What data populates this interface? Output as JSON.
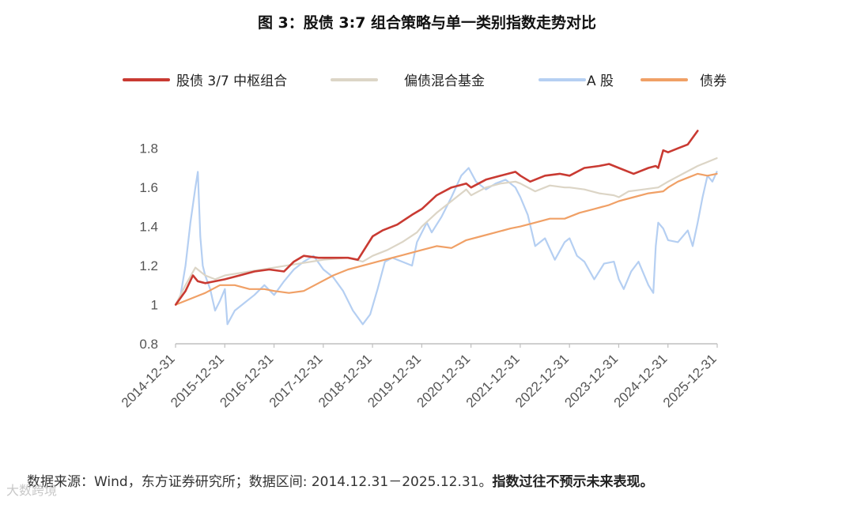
{
  "title": "图 3：股债 3:7 组合策略与单一类别指数走势对比",
  "source": {
    "text": "数据来源：Wind，东方证券研究所；数据区间: 2014.12.31－2025.12.31。",
    "emphasis": "指数过往不预示未来表现。"
  },
  "watermark": "大数跨境",
  "chart_data": {
    "type": "line",
    "title": "图 3：股债 3:7 组合策略与单一类别指数走势对比",
    "xlabel": "",
    "ylabel": "",
    "ylim": [
      0.8,
      1.9
    ],
    "yticks": [
      0.8,
      1,
      1.2,
      1.4,
      1.6,
      1.8
    ],
    "ytick_labels": [
      "0.8",
      "1",
      "1.2",
      "1.4",
      "1.6",
      "1.8"
    ],
    "xlim": [
      2014.9973,
      2025.9973
    ],
    "xticks": [
      2014.9973,
      2015.9973,
      2016.9973,
      2017.9973,
      2018.9973,
      2019.9973,
      2020.9973,
      2021.9973,
      2022.9973,
      2023.9973,
      2024.9973,
      2025.9973
    ],
    "xtick_labels": [
      "2014-12-31",
      "2015-12-31",
      "2016-12-31",
      "2017-12-31",
      "2018-12-31",
      "2019-12-31",
      "2020-12-31",
      "2021-12-31",
      "2022-12-31",
      "2023-12-31",
      "2024-12-31",
      "2025-12-31"
    ],
    "legend_position": "top",
    "grid": false,
    "series": [
      {
        "name": "股债 3/7 中枢组合",
        "color": "#c93a32",
        "x": [
          2015.0,
          2015.2,
          2015.35,
          2015.45,
          2015.6,
          2015.8,
          2016.0,
          2016.3,
          2016.6,
          2016.9,
          2017.2,
          2017.4,
          2017.6,
          2017.9,
          2018.2,
          2018.5,
          2018.7,
          2018.8,
          2019.0,
          2019.2,
          2019.5,
          2019.8,
          2020.0,
          2020.3,
          2020.6,
          2020.9,
          2021.0,
          2021.3,
          2021.6,
          2021.9,
          2022.0,
          2022.2,
          2022.5,
          2022.8,
          2023.0,
          2023.3,
          2023.6,
          2023.8,
          2024.0,
          2024.3,
          2024.6,
          2024.75,
          2024.8,
          2024.9,
          2025.0,
          2025.2,
          2025.4,
          2025.6
        ],
        "y": [
          1.0,
          1.07,
          1.15,
          1.12,
          1.11,
          1.12,
          1.13,
          1.15,
          1.17,
          1.18,
          1.17,
          1.22,
          1.25,
          1.24,
          1.24,
          1.24,
          1.23,
          1.27,
          1.35,
          1.38,
          1.41,
          1.46,
          1.49,
          1.56,
          1.6,
          1.62,
          1.6,
          1.64,
          1.66,
          1.68,
          1.66,
          1.63,
          1.66,
          1.67,
          1.66,
          1.7,
          1.71,
          1.72,
          1.7,
          1.67,
          1.7,
          1.71,
          1.7,
          1.79,
          1.78,
          1.8,
          1.82,
          1.89
        ]
      },
      {
        "name": "偏债混合基金",
        "color": "#dcd5c6",
        "x": [
          2015.0,
          2015.2,
          2015.4,
          2015.6,
          2015.8,
          2016.0,
          2016.5,
          2017.0,
          2017.5,
          2018.0,
          2018.5,
          2018.8,
          2019.0,
          2019.3,
          2019.6,
          2019.9,
          2020.0,
          2020.3,
          2020.6,
          2020.9,
          2021.0,
          2021.3,
          2021.6,
          2021.9,
          2022.0,
          2022.3,
          2022.6,
          2022.9,
          2023.0,
          2023.3,
          2023.6,
          2023.9,
          2024.0,
          2024.2,
          2024.5,
          2024.8,
          2025.0,
          2025.3,
          2025.6,
          2025.99
        ],
        "y": [
          1.0,
          1.1,
          1.19,
          1.15,
          1.13,
          1.15,
          1.17,
          1.19,
          1.21,
          1.23,
          1.24,
          1.22,
          1.25,
          1.28,
          1.32,
          1.37,
          1.4,
          1.47,
          1.53,
          1.59,
          1.56,
          1.6,
          1.62,
          1.63,
          1.62,
          1.58,
          1.61,
          1.6,
          1.6,
          1.59,
          1.57,
          1.56,
          1.55,
          1.58,
          1.59,
          1.6,
          1.63,
          1.67,
          1.71,
          1.75
        ]
      },
      {
        "name": "A 股",
        "color": "#b5cff2",
        "x": [
          2015.0,
          2015.1,
          2015.2,
          2015.3,
          2015.4,
          2015.45,
          2015.5,
          2015.55,
          2015.6,
          2015.7,
          2015.8,
          2015.9,
          2016.0,
          2016.05,
          2016.2,
          2016.4,
          2016.6,
          2016.8,
          2017.0,
          2017.2,
          2017.4,
          2017.6,
          2017.8,
          2018.0,
          2018.2,
          2018.4,
          2018.6,
          2018.8,
          2018.95,
          2019.1,
          2019.25,
          2019.4,
          2019.6,
          2019.8,
          2019.9,
          2020.1,
          2020.2,
          2020.4,
          2020.6,
          2020.8,
          2020.95,
          2021.1,
          2021.3,
          2021.5,
          2021.7,
          2021.9,
          2022.0,
          2022.15,
          2022.3,
          2022.5,
          2022.7,
          2022.9,
          2023.0,
          2023.15,
          2023.3,
          2023.5,
          2023.7,
          2023.9,
          2024.0,
          2024.1,
          2024.25,
          2024.4,
          2024.6,
          2024.7,
          2024.75,
          2024.8,
          2024.9,
          2025.0,
          2025.2,
          2025.4,
          2025.5,
          2025.6,
          2025.7,
          2025.8,
          2025.9,
          2025.99
        ],
        "y": [
          1.0,
          1.05,
          1.2,
          1.42,
          1.6,
          1.68,
          1.35,
          1.2,
          1.15,
          1.08,
          0.97,
          1.02,
          1.08,
          0.9,
          0.97,
          1.01,
          1.05,
          1.1,
          1.05,
          1.12,
          1.18,
          1.22,
          1.25,
          1.18,
          1.14,
          1.07,
          0.97,
          0.9,
          0.95,
          1.08,
          1.22,
          1.24,
          1.22,
          1.2,
          1.32,
          1.42,
          1.37,
          1.45,
          1.55,
          1.66,
          1.7,
          1.63,
          1.59,
          1.62,
          1.64,
          1.6,
          1.55,
          1.46,
          1.3,
          1.34,
          1.23,
          1.32,
          1.34,
          1.25,
          1.22,
          1.13,
          1.21,
          1.22,
          1.13,
          1.08,
          1.17,
          1.22,
          1.1,
          1.06,
          1.3,
          1.42,
          1.39,
          1.33,
          1.32,
          1.38,
          1.3,
          1.42,
          1.55,
          1.66,
          1.63,
          1.68
        ]
      },
      {
        "name": "债券",
        "color": "#f0a066",
        "x": [
          2015.0,
          2015.3,
          2015.6,
          2015.9,
          2016.2,
          2016.5,
          2016.8,
          2017.0,
          2017.3,
          2017.6,
          2017.9,
          2018.2,
          2018.5,
          2018.8,
          2019.1,
          2019.4,
          2019.7,
          2020.0,
          2020.3,
          2020.6,
          2020.9,
          2021.2,
          2021.5,
          2021.8,
          2022.0,
          2022.3,
          2022.6,
          2022.9,
          2023.2,
          2023.5,
          2023.8,
          2024.0,
          2024.3,
          2024.6,
          2024.9,
          2025.0,
          2025.2,
          2025.4,
          2025.6,
          2025.8,
          2025.99
        ],
        "y": [
          1.0,
          1.03,
          1.06,
          1.1,
          1.1,
          1.08,
          1.08,
          1.07,
          1.06,
          1.07,
          1.11,
          1.15,
          1.18,
          1.2,
          1.22,
          1.24,
          1.26,
          1.28,
          1.3,
          1.29,
          1.33,
          1.35,
          1.37,
          1.39,
          1.4,
          1.42,
          1.44,
          1.44,
          1.47,
          1.49,
          1.51,
          1.53,
          1.55,
          1.57,
          1.58,
          1.6,
          1.63,
          1.65,
          1.67,
          1.66,
          1.67
        ]
      }
    ]
  }
}
